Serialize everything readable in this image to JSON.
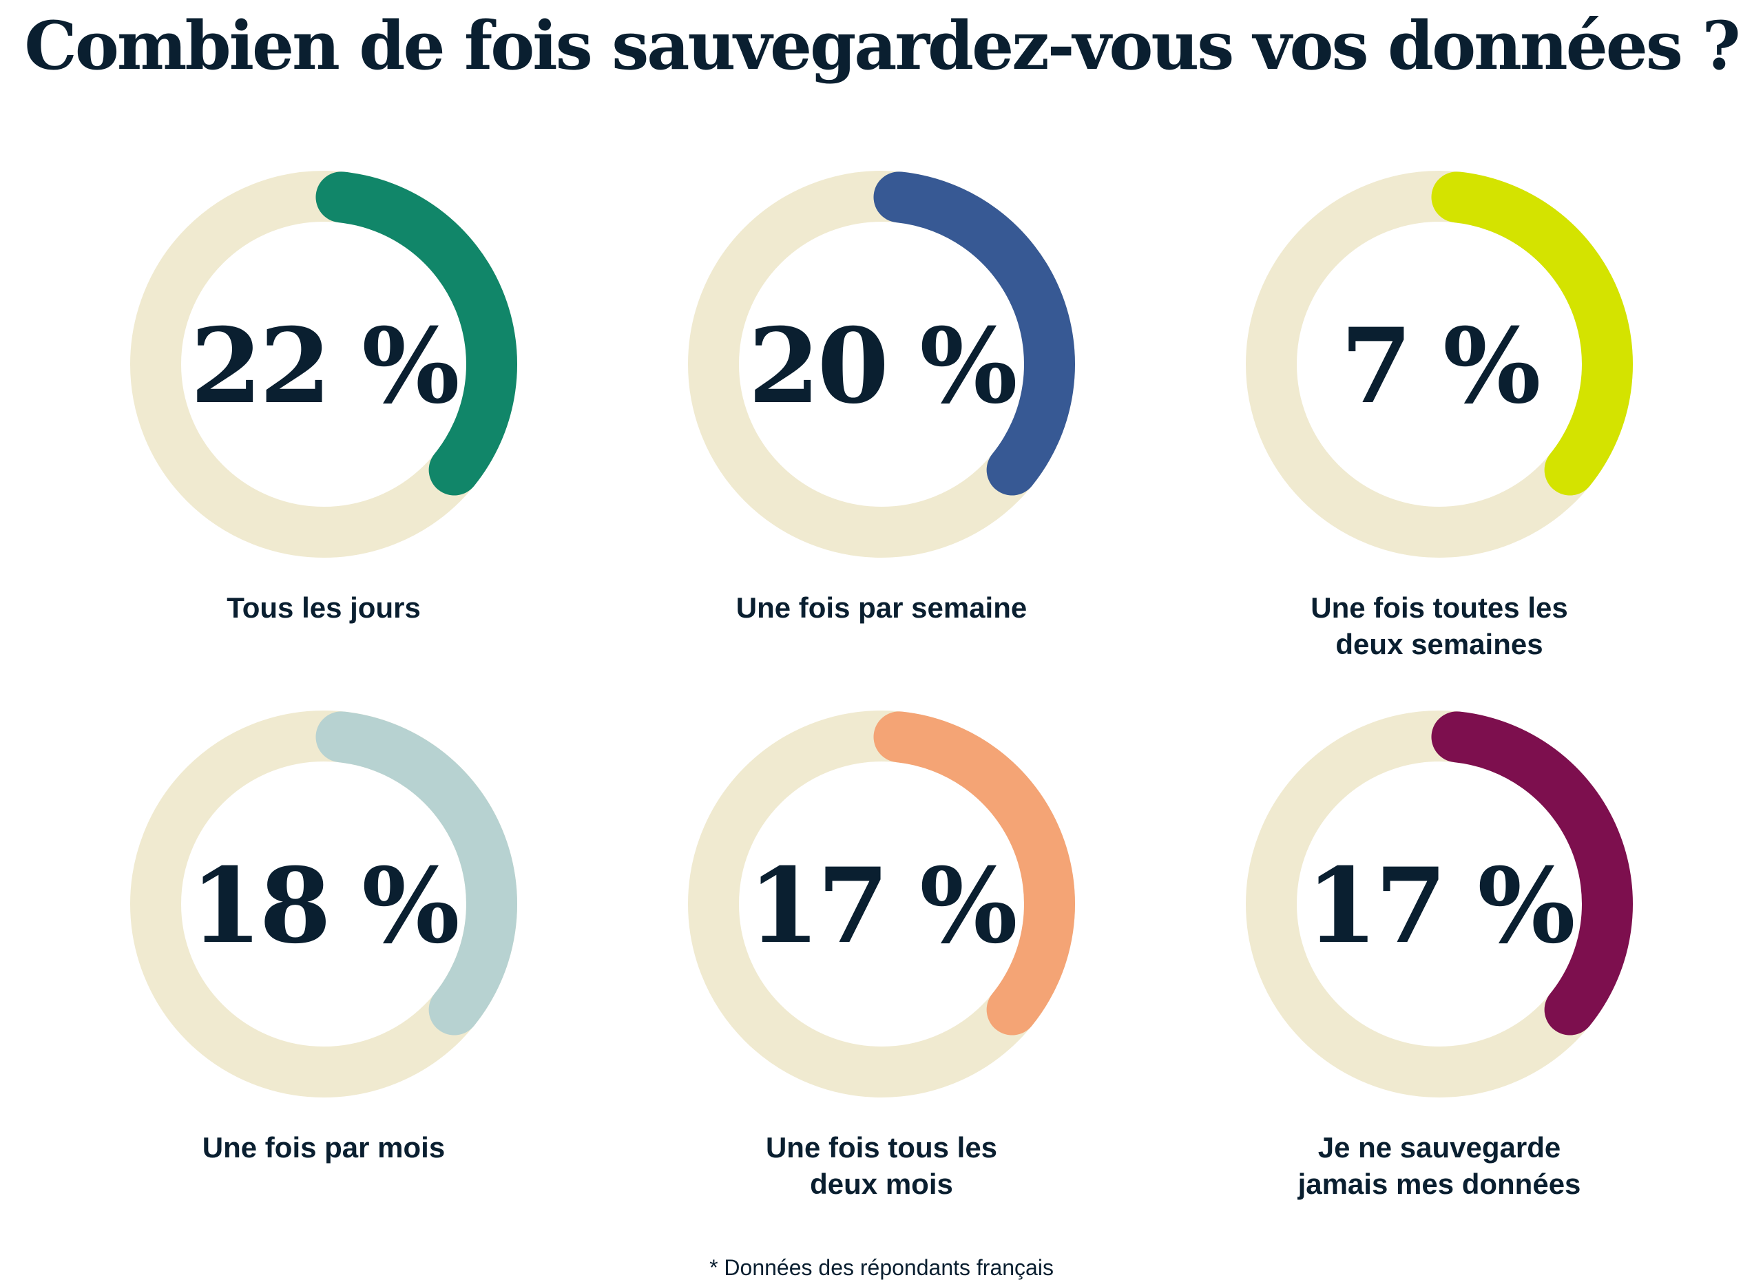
{
  "chart_data": {
    "type": "donut",
    "title": "Combien de fois sauvegardez-vous vos données ?",
    "footnote": "* Données des répondants français",
    "track_color": "#f0ead0",
    "items": [
      {
        "label_lines": [
          "Tous les jours"
        ],
        "value": 22,
        "value_label": "22 %",
        "color": "#118669"
      },
      {
        "label_lines": [
          "Une fois par semaine"
        ],
        "value": 20,
        "value_label": "20 %",
        "color": "#375994"
      },
      {
        "label_lines": [
          "Une fois toutes les",
          "deux semaines"
        ],
        "value": 7,
        "value_label": "7 %",
        "color": "#d4e300"
      },
      {
        "label_lines": [
          "Une fois par mois"
        ],
        "value": 18,
        "value_label": "18 %",
        "color": "#b7d2d1"
      },
      {
        "label_lines": [
          "Une fois tous les",
          "deux mois"
        ],
        "value": 17,
        "value_label": "17 %",
        "color": "#f4a475"
      },
      {
        "label_lines": [
          "Je ne sauvegarde",
          "jamais mes données"
        ],
        "value": 17,
        "value_label": "17 %",
        "color": "#7d0f4e"
      }
    ]
  }
}
